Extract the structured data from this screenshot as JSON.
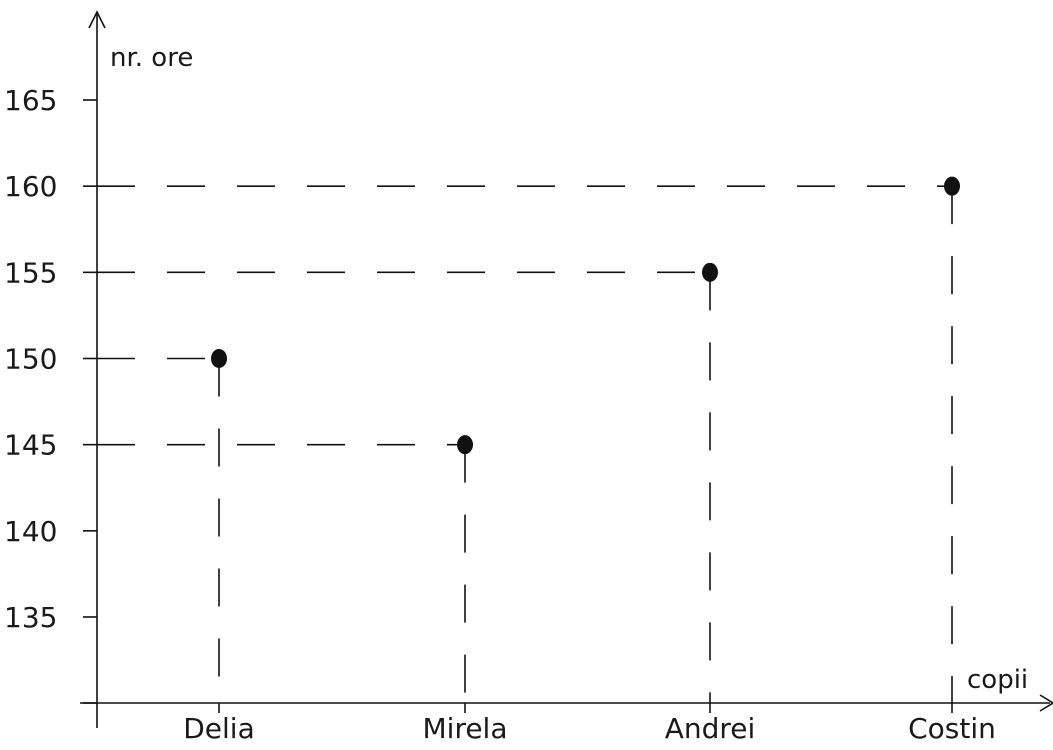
{
  "chart_data": {
    "type": "scatter",
    "xlabel": "copii",
    "ylabel": "nr. ore",
    "categories": [
      "Delia",
      "Mirela",
      "Andrei",
      "Costin"
    ],
    "values": [
      150,
      145,
      155,
      160
    ],
    "yticks": [
      135,
      140,
      145,
      150,
      155,
      160,
      165
    ],
    "ylim": [
      130,
      168
    ],
    "grid": false,
    "guide_lines": "dashed",
    "point_color": "#111111",
    "line_color": "#111111"
  }
}
